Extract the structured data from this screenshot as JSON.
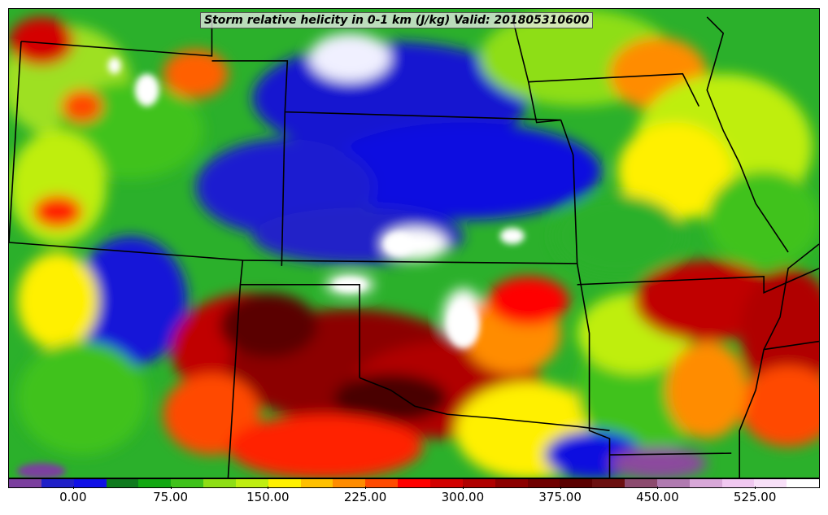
{
  "title": "Storm relative helicity in 0-1 km (J/kg) Valid: 201805310600",
  "colorbar": {
    "tick_labels": [
      "0.00",
      "75.00",
      "150.00",
      "225.00",
      "300.00",
      "375.00",
      "450.00",
      "525.00"
    ],
    "tick_values": [
      0,
      75,
      150,
      225,
      300,
      375,
      450,
      525
    ],
    "min": -50,
    "max": 575,
    "step": 25,
    "colors": [
      "#7b3f9e",
      "#2020c8",
      "#1010e6",
      "#0f7a1e",
      "#12a812",
      "#3fc21a",
      "#8ede15",
      "#bfee10",
      "#fff000",
      "#ffc000",
      "#ff8c00",
      "#ff4a00",
      "#ff0000",
      "#d20000",
      "#b00000",
      "#8c0000",
      "#700000",
      "#5a0000",
      "#6b1010",
      "#8c4a6e",
      "#b07ab0",
      "#d8a8d8",
      "#f0c8f0",
      "#f8e0f8",
      "#ffffff"
    ]
  },
  "map": {
    "features": [
      "state-borders",
      "helicity-field"
    ]
  }
}
